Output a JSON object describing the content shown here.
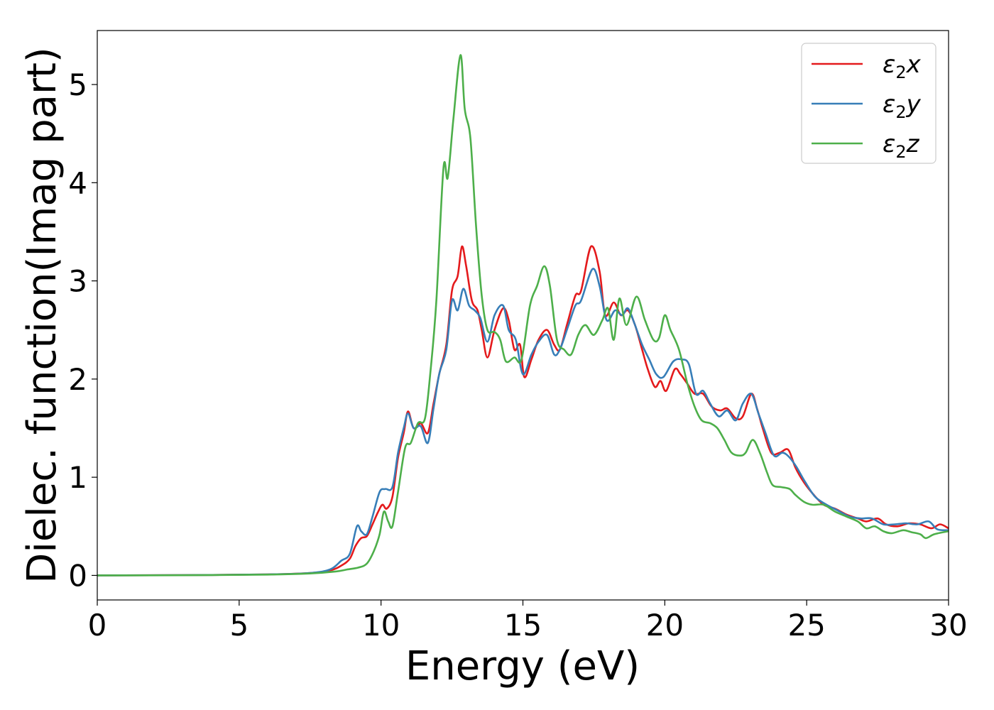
{
  "chart_data": {
    "type": "line",
    "xlabel": "Energy (eV)",
    "ylabel": "Dielec. function(Imag part)",
    "xlim": [
      0,
      30
    ],
    "ylim": [
      -0.25,
      5.55
    ],
    "xticks": [
      0,
      5,
      10,
      15,
      20,
      25,
      30
    ],
    "yticks": [
      0,
      1,
      2,
      3,
      4,
      5
    ],
    "legend_position": "top-right",
    "grid": false,
    "series": [
      {
        "name": "ε₂x",
        "legend": {
          "base": "ε",
          "sub": "2",
          "suffix": "x"
        },
        "color": "#e41a1c",
        "points": [
          [
            0,
            0
          ],
          [
            3,
            0.003
          ],
          [
            6,
            0.01
          ],
          [
            7.5,
            0.025
          ],
          [
            8.2,
            0.05
          ],
          [
            8.6,
            0.1
          ],
          [
            8.9,
            0.17
          ],
          [
            9.1,
            0.3
          ],
          [
            9.3,
            0.38
          ],
          [
            9.5,
            0.4
          ],
          [
            9.7,
            0.52
          ],
          [
            9.9,
            0.65
          ],
          [
            10.05,
            0.72
          ],
          [
            10.2,
            0.68
          ],
          [
            10.4,
            0.8
          ],
          [
            10.6,
            1.2
          ],
          [
            10.8,
            1.45
          ],
          [
            10.95,
            1.67
          ],
          [
            11.15,
            1.5
          ],
          [
            11.4,
            1.55
          ],
          [
            11.65,
            1.45
          ],
          [
            11.85,
            1.75
          ],
          [
            12.05,
            2.05
          ],
          [
            12.3,
            2.35
          ],
          [
            12.5,
            2.9
          ],
          [
            12.7,
            3.05
          ],
          [
            12.85,
            3.35
          ],
          [
            13.0,
            3.15
          ],
          [
            13.2,
            2.8
          ],
          [
            13.4,
            2.7
          ],
          [
            13.55,
            2.5
          ],
          [
            13.75,
            2.22
          ],
          [
            14.0,
            2.5
          ],
          [
            14.3,
            2.72
          ],
          [
            14.5,
            2.6
          ],
          [
            14.7,
            2.3
          ],
          [
            14.9,
            2.35
          ],
          [
            15.05,
            2.02
          ],
          [
            15.3,
            2.2
          ],
          [
            15.55,
            2.4
          ],
          [
            15.85,
            2.5
          ],
          [
            16.1,
            2.35
          ],
          [
            16.3,
            2.3
          ],
          [
            16.55,
            2.55
          ],
          [
            16.85,
            2.85
          ],
          [
            17.05,
            2.9
          ],
          [
            17.4,
            3.35
          ],
          [
            17.7,
            3.1
          ],
          [
            17.9,
            2.65
          ],
          [
            18.2,
            2.78
          ],
          [
            18.45,
            2.65
          ],
          [
            18.7,
            2.7
          ],
          [
            18.95,
            2.55
          ],
          [
            19.2,
            2.3
          ],
          [
            19.4,
            2.1
          ],
          [
            19.65,
            1.92
          ],
          [
            19.85,
            1.98
          ],
          [
            20.05,
            1.88
          ],
          [
            20.35,
            2.1
          ],
          [
            20.55,
            2.05
          ],
          [
            20.8,
            1.95
          ],
          [
            21.05,
            1.85
          ],
          [
            21.35,
            1.85
          ],
          [
            21.65,
            1.72
          ],
          [
            21.95,
            1.68
          ],
          [
            22.2,
            1.7
          ],
          [
            22.5,
            1.6
          ],
          [
            22.75,
            1.62
          ],
          [
            23.05,
            1.85
          ],
          [
            23.25,
            1.7
          ],
          [
            23.45,
            1.5
          ],
          [
            23.75,
            1.25
          ],
          [
            24.05,
            1.25
          ],
          [
            24.35,
            1.28
          ],
          [
            24.6,
            1.1
          ],
          [
            24.9,
            0.95
          ],
          [
            25.25,
            0.82
          ],
          [
            25.6,
            0.72
          ],
          [
            26.0,
            0.68
          ],
          [
            26.4,
            0.62
          ],
          [
            26.8,
            0.58
          ],
          [
            27.1,
            0.55
          ],
          [
            27.5,
            0.58
          ],
          [
            27.8,
            0.52
          ],
          [
            28.2,
            0.5
          ],
          [
            28.6,
            0.53
          ],
          [
            29.0,
            0.52
          ],
          [
            29.4,
            0.48
          ],
          [
            29.7,
            0.52
          ],
          [
            30,
            0.48
          ]
        ]
      },
      {
        "name": "ε₂y",
        "legend": {
          "base": "ε",
          "sub": "2",
          "suffix": "y"
        },
        "color": "#377eb8",
        "points": [
          [
            0,
            0
          ],
          [
            3,
            0.003
          ],
          [
            6,
            0.01
          ],
          [
            7.5,
            0.025
          ],
          [
            8.2,
            0.06
          ],
          [
            8.6,
            0.15
          ],
          [
            8.9,
            0.22
          ],
          [
            9.15,
            0.5
          ],
          [
            9.3,
            0.45
          ],
          [
            9.5,
            0.42
          ],
          [
            9.7,
            0.6
          ],
          [
            9.95,
            0.85
          ],
          [
            10.15,
            0.88
          ],
          [
            10.4,
            0.9
          ],
          [
            10.6,
            1.25
          ],
          [
            10.8,
            1.5
          ],
          [
            10.95,
            1.65
          ],
          [
            11.15,
            1.5
          ],
          [
            11.4,
            1.52
          ],
          [
            11.65,
            1.35
          ],
          [
            11.85,
            1.7
          ],
          [
            12.05,
            2.05
          ],
          [
            12.3,
            2.3
          ],
          [
            12.5,
            2.8
          ],
          [
            12.7,
            2.7
          ],
          [
            12.9,
            2.92
          ],
          [
            13.1,
            2.75
          ],
          [
            13.3,
            2.7
          ],
          [
            13.5,
            2.62
          ],
          [
            13.75,
            2.38
          ],
          [
            14.0,
            2.65
          ],
          [
            14.3,
            2.75
          ],
          [
            14.5,
            2.5
          ],
          [
            14.75,
            2.4
          ],
          [
            15.0,
            2.05
          ],
          [
            15.3,
            2.25
          ],
          [
            15.55,
            2.38
          ],
          [
            15.85,
            2.45
          ],
          [
            16.1,
            2.25
          ],
          [
            16.3,
            2.3
          ],
          [
            16.55,
            2.5
          ],
          [
            16.85,
            2.75
          ],
          [
            17.05,
            2.8
          ],
          [
            17.45,
            3.12
          ],
          [
            17.7,
            2.95
          ],
          [
            17.95,
            2.6
          ],
          [
            18.25,
            2.7
          ],
          [
            18.5,
            2.65
          ],
          [
            18.7,
            2.72
          ],
          [
            18.95,
            2.55
          ],
          [
            19.2,
            2.35
          ],
          [
            19.45,
            2.2
          ],
          [
            19.7,
            2.05
          ],
          [
            19.95,
            2.02
          ],
          [
            20.3,
            2.18
          ],
          [
            20.6,
            2.2
          ],
          [
            20.85,
            2.15
          ],
          [
            21.1,
            1.85
          ],
          [
            21.35,
            1.88
          ],
          [
            21.6,
            1.75
          ],
          [
            21.9,
            1.62
          ],
          [
            22.2,
            1.68
          ],
          [
            22.5,
            1.58
          ],
          [
            22.75,
            1.75
          ],
          [
            23.05,
            1.85
          ],
          [
            23.3,
            1.65
          ],
          [
            23.55,
            1.45
          ],
          [
            23.85,
            1.22
          ],
          [
            24.15,
            1.25
          ],
          [
            24.4,
            1.2
          ],
          [
            24.65,
            1.1
          ],
          [
            24.95,
            0.95
          ],
          [
            25.3,
            0.8
          ],
          [
            25.7,
            0.72
          ],
          [
            26.1,
            0.66
          ],
          [
            26.5,
            0.6
          ],
          [
            26.9,
            0.58
          ],
          [
            27.3,
            0.58
          ],
          [
            27.7,
            0.52
          ],
          [
            28.1,
            0.52
          ],
          [
            28.5,
            0.53
          ],
          [
            28.9,
            0.52
          ],
          [
            29.3,
            0.55
          ],
          [
            29.6,
            0.47
          ],
          [
            30,
            0.46
          ]
        ]
      },
      {
        "name": "ε₂z",
        "legend": {
          "base": "ε",
          "sub": "2",
          "suffix": "z"
        },
        "color": "#4daf4a",
        "points": [
          [
            0,
            0
          ],
          [
            3,
            0.002
          ],
          [
            6,
            0.008
          ],
          [
            7.5,
            0.02
          ],
          [
            8.4,
            0.04
          ],
          [
            8.8,
            0.06
          ],
          [
            9.2,
            0.08
          ],
          [
            9.5,
            0.12
          ],
          [
            9.75,
            0.25
          ],
          [
            9.95,
            0.42
          ],
          [
            10.1,
            0.65
          ],
          [
            10.25,
            0.55
          ],
          [
            10.4,
            0.5
          ],
          [
            10.6,
            0.85
          ],
          [
            10.85,
            1.3
          ],
          [
            11.05,
            1.35
          ],
          [
            11.3,
            1.55
          ],
          [
            11.55,
            1.6
          ],
          [
            11.75,
            2.1
          ],
          [
            11.95,
            2.8
          ],
          [
            12.2,
            4.15
          ],
          [
            12.35,
            4.05
          ],
          [
            12.55,
            4.65
          ],
          [
            12.8,
            5.3
          ],
          [
            12.95,
            4.75
          ],
          [
            13.15,
            4.45
          ],
          [
            13.35,
            3.55
          ],
          [
            13.55,
            2.85
          ],
          [
            13.75,
            2.5
          ],
          [
            14.0,
            2.48
          ],
          [
            14.2,
            2.4
          ],
          [
            14.4,
            2.18
          ],
          [
            14.7,
            2.22
          ],
          [
            14.95,
            2.2
          ],
          [
            15.25,
            2.75
          ],
          [
            15.5,
            2.95
          ],
          [
            15.75,
            3.15
          ],
          [
            15.95,
            2.95
          ],
          [
            16.2,
            2.4
          ],
          [
            16.45,
            2.3
          ],
          [
            16.7,
            2.25
          ],
          [
            16.95,
            2.45
          ],
          [
            17.2,
            2.55
          ],
          [
            17.5,
            2.45
          ],
          [
            17.8,
            2.6
          ],
          [
            18.0,
            2.72
          ],
          [
            18.2,
            2.4
          ],
          [
            18.4,
            2.82
          ],
          [
            18.65,
            2.55
          ],
          [
            19.0,
            2.84
          ],
          [
            19.3,
            2.6
          ],
          [
            19.6,
            2.4
          ],
          [
            19.8,
            2.42
          ],
          [
            20.0,
            2.65
          ],
          [
            20.2,
            2.5
          ],
          [
            20.5,
            2.3
          ],
          [
            20.8,
            1.95
          ],
          [
            21.05,
            1.72
          ],
          [
            21.3,
            1.58
          ],
          [
            21.6,
            1.55
          ],
          [
            21.85,
            1.5
          ],
          [
            22.1,
            1.38
          ],
          [
            22.35,
            1.25
          ],
          [
            22.65,
            1.22
          ],
          [
            22.85,
            1.25
          ],
          [
            23.1,
            1.38
          ],
          [
            23.35,
            1.25
          ],
          [
            23.6,
            1.05
          ],
          [
            23.8,
            0.92
          ],
          [
            24.1,
            0.9
          ],
          [
            24.4,
            0.88
          ],
          [
            24.6,
            0.82
          ],
          [
            24.9,
            0.75
          ],
          [
            25.2,
            0.72
          ],
          [
            25.6,
            0.72
          ],
          [
            26.0,
            0.65
          ],
          [
            26.4,
            0.6
          ],
          [
            26.8,
            0.55
          ],
          [
            27.1,
            0.48
          ],
          [
            27.4,
            0.5
          ],
          [
            27.7,
            0.45
          ],
          [
            28.0,
            0.43
          ],
          [
            28.4,
            0.46
          ],
          [
            28.7,
            0.44
          ],
          [
            29.0,
            0.42
          ],
          [
            29.2,
            0.38
          ],
          [
            29.5,
            0.42
          ],
          [
            30,
            0.45
          ]
        ]
      }
    ]
  }
}
